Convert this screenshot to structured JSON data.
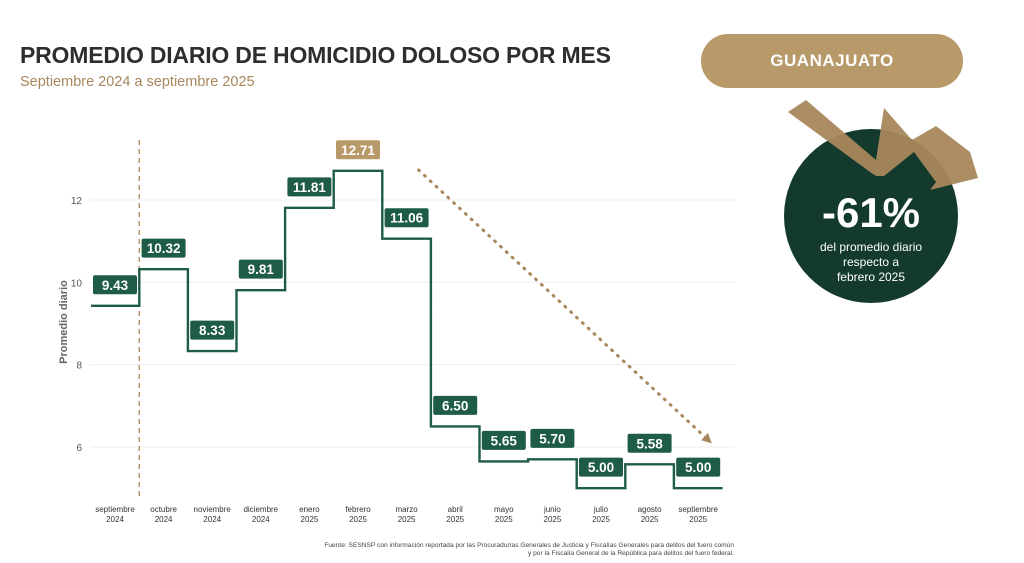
{
  "header": {
    "title": "PROMEDIO DIARIO DE HOMICIDIO DOLOSO POR MES",
    "subtitle": "Septiembre 2024 a septiembre 2025"
  },
  "badge": {
    "label": "GUANAJUATO"
  },
  "callout": {
    "value": "-61%",
    "line1": "del promedio diario",
    "line2": "respecto a",
    "line3": "febrero 2025"
  },
  "source": {
    "line1": "Fuente: SESNSP con información reportada por las Procuradurías Generales de Justicia y Fiscalías Generales para delitos del fuero común",
    "line2": "y por la Fiscalía General de la República para delitos del fuero federal."
  },
  "colors": {
    "green": "#1f5c45",
    "gold": "#b89a6a",
    "dark_circle": "#133a2d"
  },
  "chart_data": {
    "type": "line",
    "step": true,
    "ylabel": "Promedio diario",
    "ylim": [
      4.8,
      13.2
    ],
    "yticks": [
      6,
      8,
      10,
      12
    ],
    "categories": [
      [
        "septiembre",
        "2024"
      ],
      [
        "octubre",
        "2024"
      ],
      [
        "noviembre",
        "2024"
      ],
      [
        "diciembre",
        "2024"
      ],
      [
        "enero",
        "2025"
      ],
      [
        "febrero",
        "2025"
      ],
      [
        "marzo",
        "2025"
      ],
      [
        "abril",
        "2025"
      ],
      [
        "mayo",
        "2025"
      ],
      [
        "junio",
        "2025"
      ],
      [
        "julio",
        "2025"
      ],
      [
        "agosto",
        "2025"
      ],
      [
        "septiembre",
        "2025"
      ]
    ],
    "values": [
      9.43,
      10.32,
      8.33,
      9.81,
      11.81,
      12.71,
      11.06,
      6.5,
      5.65,
      5.7,
      5.0,
      5.58,
      5.0
    ],
    "labels": [
      "9.43",
      "10.32",
      "8.33",
      "9.81",
      "11.81",
      "12.71",
      "11.06",
      "6.50",
      "5.65",
      "5.70",
      "5.00",
      "5.58",
      "5.00"
    ],
    "highlight_index": 5,
    "trend": {
      "from_index": 6,
      "to_index": 12,
      "style": "dotted-arrow"
    },
    "divider_after_index": 0
  }
}
